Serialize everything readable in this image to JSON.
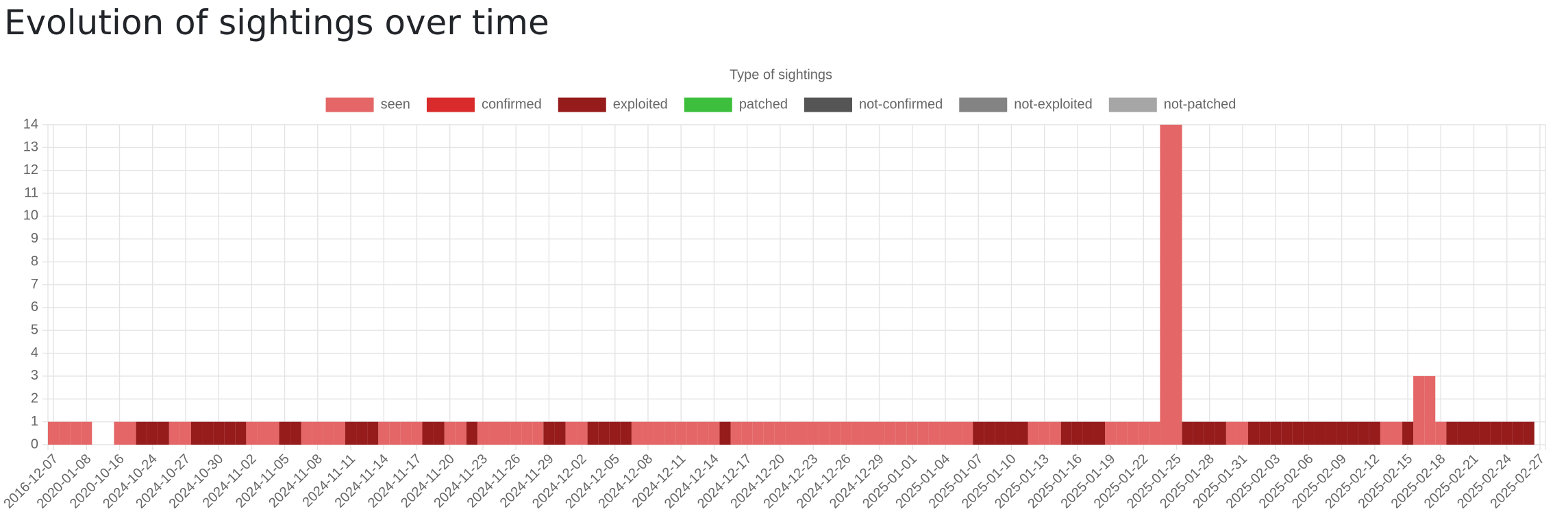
{
  "chart_data": {
    "type": "bar",
    "stacked": true,
    "title": "Evolution of sightings over time",
    "legend_title": "Type of sightings",
    "legend": "top",
    "grid": true,
    "ylim": [
      0,
      14
    ],
    "yticks": [
      0,
      1,
      2,
      3,
      4,
      5,
      6,
      7,
      8,
      9,
      10,
      11,
      12,
      13,
      14
    ],
    "categories": [
      "2016-12-07",
      null,
      null,
      "2020-01-08",
      null,
      null,
      "2020-10-16",
      null,
      null,
      "2024-10-24",
      null,
      null,
      "2024-10-27",
      null,
      null,
      "2024-10-30",
      null,
      null,
      "2024-11-02",
      null,
      null,
      "2024-11-05",
      null,
      null,
      "2024-11-08",
      null,
      null,
      "2024-11-11",
      null,
      null,
      "2024-11-14",
      null,
      null,
      "2024-11-17",
      null,
      null,
      "2024-11-20",
      null,
      null,
      "2024-11-23",
      null,
      null,
      "2024-11-26",
      null,
      null,
      "2024-11-29",
      null,
      null,
      "2024-12-02",
      null,
      null,
      "2024-12-05",
      null,
      null,
      "2024-12-08",
      null,
      null,
      "2024-12-11",
      null,
      null,
      "2024-12-14",
      null,
      null,
      "2024-12-17",
      null,
      null,
      "2024-12-20",
      null,
      null,
      "2024-12-23",
      null,
      null,
      "2024-12-26",
      null,
      null,
      "2024-12-29",
      null,
      null,
      "2025-01-01",
      null,
      null,
      "2025-01-04",
      null,
      null,
      "2025-01-07",
      null,
      null,
      "2025-01-10",
      null,
      null,
      "2025-01-13",
      null,
      null,
      "2025-01-16",
      null,
      null,
      "2025-01-19",
      null,
      null,
      "2025-01-22",
      null,
      null,
      "2025-01-25",
      null,
      null,
      "2025-01-28",
      null,
      null,
      "2025-01-31",
      null,
      null,
      "2025-02-03",
      null,
      null,
      "2025-02-06",
      null,
      null,
      "2025-02-09",
      null,
      null,
      "2025-02-12",
      null,
      null,
      "2025-02-15",
      null,
      null,
      "2025-02-18",
      null,
      null,
      "2025-02-21",
      null,
      null,
      "2025-02-24",
      null,
      null,
      "2025-02-27"
    ],
    "series": [
      {
        "name": "seen",
        "color": "#e46666",
        "values": [
          1,
          1,
          1,
          1,
          0,
          0,
          1,
          1,
          0,
          0,
          0,
          1,
          1,
          0,
          0,
          0,
          0,
          0,
          1,
          1,
          1,
          0,
          0,
          1,
          1,
          1,
          1,
          0,
          0,
          0,
          1,
          1,
          1,
          1,
          0,
          0,
          1,
          1,
          0,
          1,
          1,
          1,
          1,
          1,
          1,
          0,
          0,
          1,
          1,
          0,
          0,
          0,
          0,
          1,
          1,
          1,
          1,
          1,
          1,
          1,
          1,
          0,
          1,
          1,
          1,
          1,
          1,
          1,
          1,
          1,
          1,
          1,
          1,
          1,
          1,
          1,
          1,
          1,
          1,
          1,
          1,
          1,
          1,
          1,
          0,
          0,
          0,
          0,
          0,
          1,
          1,
          1,
          0,
          0,
          0,
          0,
          1,
          1,
          1,
          1,
          1,
          14,
          14,
          0,
          0,
          0,
          0,
          1,
          1,
          0,
          0,
          0,
          0,
          0,
          0,
          0,
          0,
          0,
          0,
          0,
          0,
          1,
          1,
          0,
          3,
          3,
          1,
          0,
          0,
          0,
          0,
          0,
          0,
          0,
          0,
          0
        ]
      },
      {
        "name": "confirmed",
        "color": "#d92b2b",
        "values": [
          0,
          0,
          0,
          0,
          0,
          0,
          0,
          0,
          0,
          0,
          0,
          0,
          0,
          0,
          0,
          0,
          0,
          0,
          0,
          0,
          0,
          0,
          0,
          0,
          0,
          0,
          0,
          0,
          0,
          0,
          0,
          0,
          0,
          0,
          0,
          0,
          0,
          0,
          0,
          0,
          0,
          0,
          0,
          0,
          0,
          0,
          0,
          0,
          0,
          0,
          0,
          0,
          0,
          0,
          0,
          0,
          0,
          0,
          0,
          0,
          0,
          0,
          0,
          0,
          0,
          0,
          0,
          0,
          0,
          0,
          0,
          0,
          0,
          0,
          0,
          0,
          0,
          0,
          0,
          0,
          0,
          0,
          0,
          0,
          0,
          0,
          0,
          0,
          0,
          0,
          0,
          0,
          0,
          0,
          0,
          0,
          0,
          0,
          0,
          0,
          0,
          0,
          0,
          0,
          0,
          0,
          0,
          0,
          0,
          0,
          0,
          0,
          0,
          0,
          0,
          0,
          0,
          0,
          0,
          0,
          0,
          0,
          0,
          0,
          0,
          0,
          0,
          0,
          0,
          0,
          0,
          0,
          0,
          0,
          0,
          0
        ]
      },
      {
        "name": "exploited",
        "color": "#961b1b",
        "values": [
          0,
          0,
          0,
          0,
          0,
          0,
          0,
          0,
          1,
          1,
          1,
          0,
          0,
          1,
          1,
          1,
          1,
          1,
          0,
          0,
          0,
          1,
          1,
          0,
          0,
          0,
          0,
          1,
          1,
          1,
          0,
          0,
          0,
          0,
          1,
          1,
          0,
          0,
          1,
          0,
          0,
          0,
          0,
          0,
          0,
          1,
          1,
          0,
          0,
          1,
          1,
          1,
          1,
          0,
          0,
          0,
          0,
          0,
          0,
          0,
          0,
          1,
          0,
          0,
          0,
          0,
          0,
          0,
          0,
          0,
          0,
          0,
          0,
          0,
          0,
          0,
          0,
          0,
          0,
          0,
          0,
          0,
          0,
          0,
          1,
          1,
          1,
          1,
          1,
          0,
          0,
          0,
          1,
          1,
          1,
          1,
          0,
          0,
          0,
          0,
          0,
          0,
          0,
          1,
          1,
          1,
          1,
          0,
          0,
          1,
          1,
          1,
          1,
          1,
          1,
          1,
          1,
          1,
          1,
          1,
          1,
          0,
          0,
          1,
          0,
          0,
          0,
          1,
          1,
          1,
          1,
          1,
          1,
          1,
          1,
          0
        ]
      },
      {
        "name": "patched",
        "color": "#3dbf3d",
        "values": [
          0,
          0,
          0,
          0,
          0,
          0,
          0,
          0,
          0,
          0,
          0,
          0,
          0,
          0,
          0,
          0,
          0,
          0,
          0,
          0,
          0,
          0,
          0,
          0,
          0,
          0,
          0,
          0,
          0,
          0,
          0,
          0,
          0,
          0,
          0,
          0,
          0,
          0,
          0,
          0,
          0,
          0,
          0,
          0,
          0,
          0,
          0,
          0,
          0,
          0,
          0,
          0,
          0,
          0,
          0,
          0,
          0,
          0,
          0,
          0,
          0,
          0,
          0,
          0,
          0,
          0,
          0,
          0,
          0,
          0,
          0,
          0,
          0,
          0,
          0,
          0,
          0,
          0,
          0,
          0,
          0,
          0,
          0,
          0,
          0,
          0,
          0,
          0,
          0,
          0,
          0,
          0,
          0,
          0,
          0,
          0,
          0,
          0,
          0,
          0,
          0,
          0,
          0,
          0,
          0,
          0,
          0,
          0,
          0,
          0,
          0,
          0,
          0,
          0,
          0,
          0,
          0,
          0,
          0,
          0,
          0,
          0,
          0,
          0,
          0,
          0,
          0,
          0,
          0,
          0,
          0,
          0,
          0,
          0,
          0,
          0
        ]
      },
      {
        "name": "not-confirmed",
        "color": "#555555",
        "values": [
          0,
          0,
          0,
          0,
          0,
          0,
          0,
          0,
          0,
          0,
          0,
          0,
          0,
          0,
          0,
          0,
          0,
          0,
          0,
          0,
          0,
          0,
          0,
          0,
          0,
          0,
          0,
          0,
          0,
          0,
          0,
          0,
          0,
          0,
          0,
          0,
          0,
          0,
          0,
          0,
          0,
          0,
          0,
          0,
          0,
          0,
          0,
          0,
          0,
          0,
          0,
          0,
          0,
          0,
          0,
          0,
          0,
          0,
          0,
          0,
          0,
          0,
          0,
          0,
          0,
          0,
          0,
          0,
          0,
          0,
          0,
          0,
          0,
          0,
          0,
          0,
          0,
          0,
          0,
          0,
          0,
          0,
          0,
          0,
          0,
          0,
          0,
          0,
          0,
          0,
          0,
          0,
          0,
          0,
          0,
          0,
          0,
          0,
          0,
          0,
          0,
          0,
          0,
          0,
          0,
          0,
          0,
          0,
          0,
          0,
          0,
          0,
          0,
          0,
          0,
          0,
          0,
          0,
          0,
          0,
          0,
          0,
          0,
          0,
          0,
          0,
          0,
          0,
          0,
          0,
          0,
          0,
          0,
          0,
          0,
          0
        ]
      },
      {
        "name": "not-exploited",
        "color": "#838383",
        "values": [
          0,
          0,
          0,
          0,
          0,
          0,
          0,
          0,
          0,
          0,
          0,
          0,
          0,
          0,
          0,
          0,
          0,
          0,
          0,
          0,
          0,
          0,
          0,
          0,
          0,
          0,
          0,
          0,
          0,
          0,
          0,
          0,
          0,
          0,
          0,
          0,
          0,
          0,
          0,
          0,
          0,
          0,
          0,
          0,
          0,
          0,
          0,
          0,
          0,
          0,
          0,
          0,
          0,
          0,
          0,
          0,
          0,
          0,
          0,
          0,
          0,
          0,
          0,
          0,
          0,
          0,
          0,
          0,
          0,
          0,
          0,
          0,
          0,
          0,
          0,
          0,
          0,
          0,
          0,
          0,
          0,
          0,
          0,
          0,
          0,
          0,
          0,
          0,
          0,
          0,
          0,
          0,
          0,
          0,
          0,
          0,
          0,
          0,
          0,
          0,
          0,
          0,
          0,
          0,
          0,
          0,
          0,
          0,
          0,
          0,
          0,
          0,
          0,
          0,
          0,
          0,
          0,
          0,
          0,
          0,
          0,
          0,
          0,
          0,
          0,
          0,
          0,
          0,
          0,
          0,
          0,
          0,
          0,
          0,
          0,
          0
        ]
      },
      {
        "name": "not-patched",
        "color": "#a6a6a6",
        "values": [
          0,
          0,
          0,
          0,
          0,
          0,
          0,
          0,
          0,
          0,
          0,
          0,
          0,
          0,
          0,
          0,
          0,
          0,
          0,
          0,
          0,
          0,
          0,
          0,
          0,
          0,
          0,
          0,
          0,
          0,
          0,
          0,
          0,
          0,
          0,
          0,
          0,
          0,
          0,
          0,
          0,
          0,
          0,
          0,
          0,
          0,
          0,
          0,
          0,
          0,
          0,
          0,
          0,
          0,
          0,
          0,
          0,
          0,
          0,
          0,
          0,
          0,
          0,
          0,
          0,
          0,
          0,
          0,
          0,
          0,
          0,
          0,
          0,
          0,
          0,
          0,
          0,
          0,
          0,
          0,
          0,
          0,
          0,
          0,
          0,
          0,
          0,
          0,
          0,
          0,
          0,
          0,
          0,
          0,
          0,
          0,
          0,
          0,
          0,
          0,
          0,
          0,
          0,
          0,
          0,
          0,
          0,
          0,
          0,
          0,
          0,
          0,
          0,
          0,
          0,
          0,
          0,
          0,
          0,
          0,
          0,
          0,
          0,
          0,
          0,
          0,
          0,
          0,
          0,
          0,
          0,
          0,
          0,
          0,
          0,
          0
        ]
      }
    ]
  }
}
